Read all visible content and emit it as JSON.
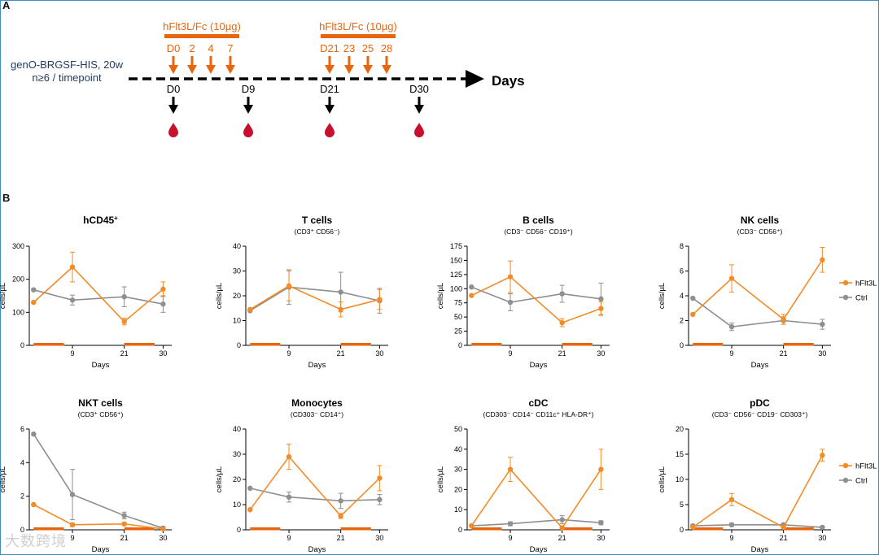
{
  "colors": {
    "treated": "#f28c28",
    "ctrl": "#8f8f8f",
    "bar": "#e8650e",
    "blood": "#c8102e"
  },
  "panel_a": {
    "label": "A",
    "cohort_line1": "genO-BRGSF-HIS, 20w",
    "cohort_line2": "n≥6 / timepoint",
    "axis_label": "Days",
    "dose_label_1": "hFlt3L/Fc (10µg)",
    "dose_label_2": "hFlt3L/Fc (10µg)",
    "dose_days_1": [
      "D0",
      "2",
      "4",
      "7"
    ],
    "dose_days_2": [
      "D21",
      "23",
      "25",
      "28"
    ],
    "sample_days": [
      "D0",
      "D9",
      "D21",
      "D30"
    ]
  },
  "panel_b": {
    "label": "B"
  },
  "chart_data": [
    {
      "type": "line",
      "title": "hCD45",
      "title_sup": "+",
      "subtitle": "",
      "ylabel": "cells/µL",
      "xlabel": "Days",
      "ylim": [
        0,
        300
      ],
      "yticks": [
        0,
        100,
        200,
        300
      ],
      "xticks": [
        9,
        21,
        30
      ],
      "x": [
        0,
        9,
        21,
        30
      ],
      "series": [
        {
          "name": "hFlt3L",
          "values": [
            130,
            237,
            72,
            170
          ],
          "err": [
            0,
            45,
            10,
            22
          ]
        },
        {
          "name": "Ctrl",
          "values": [
            168,
            137,
            147,
            125
          ],
          "err": [
            0,
            15,
            30,
            25
          ]
        }
      ],
      "legend": false
    },
    {
      "type": "line",
      "title": "T cells",
      "subtitle": "(CD3⁺ CD56⁻)",
      "ylabel": "cells/µL",
      "xlabel": "Days",
      "ylim": [
        0,
        40
      ],
      "yticks": [
        0,
        10,
        20,
        30,
        40
      ],
      "xticks": [
        9,
        21,
        30
      ],
      "x": [
        0,
        9,
        21,
        30
      ],
      "series": [
        {
          "name": "hFlt3L",
          "values": [
            14.5,
            24,
            14.5,
            18.5
          ],
          "err": [
            0,
            6,
            3,
            4
          ]
        },
        {
          "name": "Ctrl",
          "values": [
            14,
            23.5,
            21.5,
            18
          ],
          "err": [
            0,
            7,
            8,
            5
          ]
        }
      ],
      "legend": false
    },
    {
      "type": "line",
      "title": "B cells",
      "subtitle": "(CD3⁻ CD56⁻ CD19⁺)",
      "ylabel": "cells/µL",
      "xlabel": "Days",
      "ylim": [
        0,
        175
      ],
      "yticks": [
        0,
        25,
        50,
        75,
        100,
        125,
        150,
        175
      ],
      "xticks": [
        9,
        21,
        30
      ],
      "x": [
        0,
        9,
        21,
        30
      ],
      "series": [
        {
          "name": "hFlt3L",
          "values": [
            88,
            121,
            40,
            65
          ],
          "err": [
            0,
            28,
            7,
            12
          ]
        },
        {
          "name": "Ctrl",
          "values": [
            103,
            76,
            91,
            82
          ],
          "err": [
            0,
            15,
            15,
            28
          ]
        }
      ],
      "legend": false
    },
    {
      "type": "line",
      "title": "NK cells",
      "subtitle": "(CD3⁻ CD56⁺)",
      "ylabel": "cells/µL",
      "xlabel": "Days",
      "ylim": [
        0,
        8
      ],
      "yticks": [
        0,
        2,
        4,
        6,
        8
      ],
      "xticks": [
        9,
        21,
        30
      ],
      "x": [
        0,
        9,
        21,
        30
      ],
      "series": [
        {
          "name": "hFlt3L",
          "values": [
            2.5,
            5.4,
            2.1,
            6.9
          ],
          "err": [
            0,
            1.1,
            0.4,
            1.0
          ]
        },
        {
          "name": "Ctrl",
          "values": [
            3.8,
            1.5,
            2.0,
            1.7
          ],
          "err": [
            0,
            0.3,
            0.3,
            0.4
          ]
        }
      ],
      "legend": true
    },
    {
      "type": "line",
      "title": "NKT cells",
      "subtitle": "(CD3⁺ CD56⁺)",
      "ylabel": "cells/µL",
      "xlabel": "Days",
      "ylim": [
        0,
        6
      ],
      "yticks": [
        0,
        2,
        4,
        6
      ],
      "xticks": [
        9,
        21,
        30
      ],
      "x": [
        0,
        9,
        21,
        30
      ],
      "series": [
        {
          "name": "hFlt3L",
          "values": [
            1.5,
            0.3,
            0.35,
            0.05
          ],
          "err": [
            0,
            0.1,
            0.1,
            0.05
          ]
        },
        {
          "name": "Ctrl",
          "values": [
            5.7,
            2.1,
            0.85,
            0.1
          ],
          "err": [
            0,
            1.5,
            0.2,
            0.1
          ]
        }
      ],
      "legend": false
    },
    {
      "type": "line",
      "title": "Monocytes",
      "subtitle": "(CD303⁻ CD14⁺)",
      "ylabel": "cells/µL",
      "xlabel": "Days",
      "ylim": [
        0,
        40
      ],
      "yticks": [
        0,
        10,
        20,
        30,
        40
      ],
      "xticks": [
        9,
        21,
        30
      ],
      "x": [
        0,
        9,
        21,
        30
      ],
      "series": [
        {
          "name": "hFlt3L",
          "values": [
            8,
            29,
            5.5,
            20.5
          ],
          "err": [
            0,
            5,
            1,
            5
          ]
        },
        {
          "name": "Ctrl",
          "values": [
            16.5,
            13,
            11.5,
            12
          ],
          "err": [
            0,
            2,
            3,
            2
          ]
        }
      ],
      "legend": false
    },
    {
      "type": "line",
      "title": "cDC",
      "subtitle": "(CD303⁻ CD14⁻ CD11c⁺ HLA-DR⁺)",
      "ylabel": "cells/µL",
      "xlabel": "Days",
      "ylim": [
        0,
        50
      ],
      "yticks": [
        0,
        10,
        20,
        30,
        40,
        50
      ],
      "xticks": [
        9,
        21,
        30
      ],
      "x": [
        0,
        9,
        21,
        30
      ],
      "series": [
        {
          "name": "hFlt3L",
          "values": [
            2,
            30,
            1,
            30
          ],
          "err": [
            0,
            6,
            0.5,
            10
          ]
        },
        {
          "name": "Ctrl",
          "values": [
            2,
            3,
            5,
            3.5
          ],
          "err": [
            0,
            1,
            2,
            1
          ]
        }
      ],
      "legend": false
    },
    {
      "type": "line",
      "title": "pDC",
      "subtitle": "(CD3⁻ CD56⁻ CD19⁻ CD303⁺)",
      "ylabel": "cells/µL",
      "xlabel": "Days",
      "ylim": [
        0,
        20
      ],
      "yticks": [
        0,
        5,
        10,
        15,
        20
      ],
      "xticks": [
        9,
        21,
        30
      ],
      "x": [
        0,
        9,
        21,
        30
      ],
      "series": [
        {
          "name": "hFlt3L",
          "values": [
            0.5,
            6,
            0.5,
            14.8
          ],
          "err": [
            0,
            1.2,
            0.2,
            1.2
          ]
        },
        {
          "name": "Ctrl",
          "values": [
            0.8,
            1.0,
            1.0,
            0.5
          ],
          "err": [
            0,
            0.3,
            0.3,
            0.2
          ]
        }
      ],
      "legend": true
    }
  ],
  "treatment_windows": [
    [
      0,
      7
    ],
    [
      21,
      28
    ]
  ],
  "watermark": "大数跨境"
}
